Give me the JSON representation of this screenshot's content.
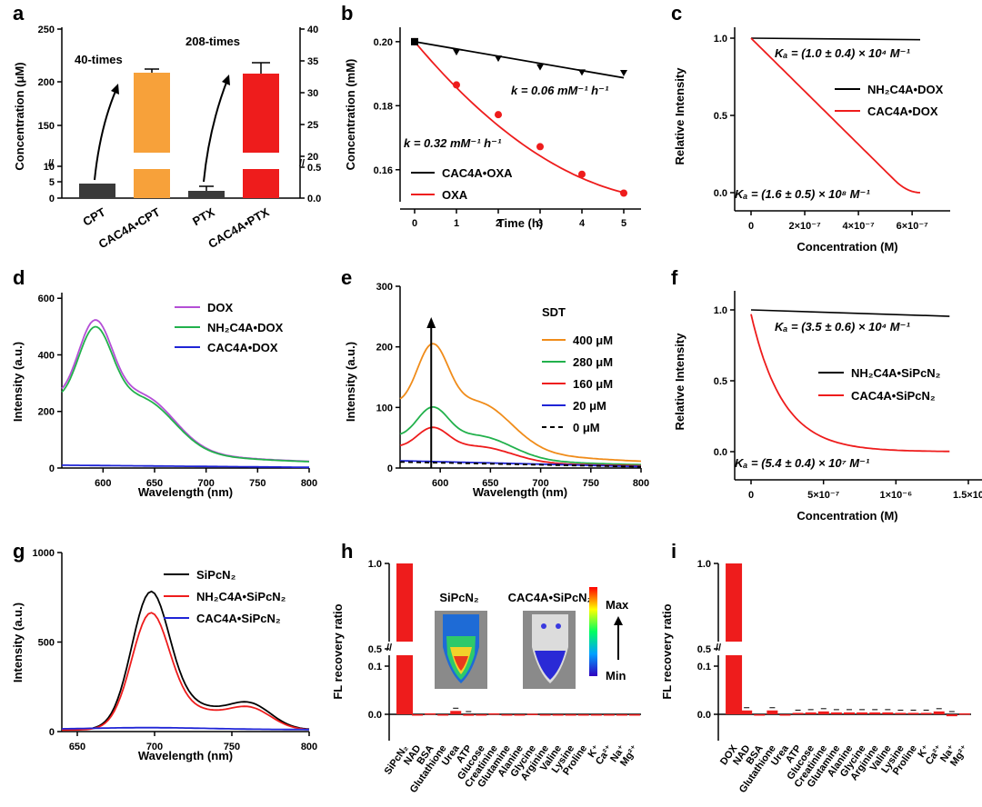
{
  "colors": {
    "black": "#000000",
    "red": "#ee1c1c",
    "orange": "#f7a13a",
    "green": "#22b14c",
    "blue": "#1f24d6",
    "purple": "#b44fd6",
    "orange_line": "#f08c1a",
    "dark": "#3a3a3a"
  },
  "chart_data": [
    {
      "panel": "a",
      "type": "bar",
      "categories": [
        "CPT",
        "CAC4A•CPT",
        "PTX",
        "CAC4A•PTX"
      ],
      "values": [
        5,
        200,
        0.2,
        33
      ],
      "errors": [
        0,
        4,
        0.2,
        1.5
      ],
      "axis": [
        "left",
        "left",
        "right",
        "right"
      ],
      "colors": [
        "#3a3a3a",
        "#f7a13a",
        "#3a3a3a",
        "#ee1c1c"
      ],
      "ylabel": "Concentration (μM)",
      "left_ticks": [
        "0",
        "5",
        "10",
        "150",
        "200",
        "250"
      ],
      "right_ticks": [
        "0.0",
        "0.5",
        "20",
        "25",
        "30",
        "35",
        "40"
      ],
      "annotations": [
        "40-times",
        "208-times"
      ]
    },
    {
      "panel": "b",
      "type": "line",
      "x": [
        0,
        1,
        2,
        3,
        4,
        5
      ],
      "series": [
        {
          "name": "CAC4A•OXA",
          "values": [
            0.2,
            0.1968,
            0.1948,
            0.1921,
            0.1905,
            0.1903
          ],
          "color": "#000000",
          "fit": [
            0.2,
            0.1887
          ]
        },
        {
          "name": "OXA",
          "values": [
            0.2,
            0.1865,
            0.1772,
            0.1672,
            0.1586,
            0.1527
          ],
          "color": "#ee1c1c"
        }
      ],
      "xlabel": "Time (h)",
      "ylabel": "Concentration (mM)",
      "xticks": [
        "0",
        "1",
        "2",
        "3",
        "4",
        "5"
      ],
      "yticks": [
        "0.16",
        "0.18",
        "0.20"
      ],
      "ylim": [
        0.15,
        0.205
      ],
      "annotations": [
        "k = 0.06 mM⁻¹ h⁻¹",
        "k = 0.32 mM⁻¹ h⁻¹"
      ]
    },
    {
      "panel": "c",
      "type": "line",
      "series": [
        {
          "name": "NH₂C4A•DOX",
          "color": "#000000"
        },
        {
          "name": "CAC4A•DOX",
          "color": "#ee1c1c"
        }
      ],
      "xlabel": "Concentration (M)",
      "ylabel": "Relative Intensity",
      "xticks": [
        "0",
        "2×10⁻⁷",
        "4×10⁻⁷",
        "6×10⁻⁷"
      ],
      "yticks": [
        "0.0",
        "0.5",
        "1.0"
      ],
      "annotations": [
        "Kₐ = (1.0 ± 0.4) × 10⁴ M⁻¹",
        "Kₐ = (1.6 ± 0.5) × 10⁸ M⁻¹"
      ]
    },
    {
      "panel": "d",
      "type": "line",
      "series": [
        {
          "name": "DOX",
          "color": "#b44fd6",
          "peak": 550
        },
        {
          "name": "NH₂C4A•DOX",
          "color": "#22b14c",
          "peak": 525
        },
        {
          "name": "CAC4A•DOX",
          "color": "#1f24d6",
          "peak": 10
        }
      ],
      "xlabel": "Wavelength (nm)",
      "ylabel": "Intensity (a.u.)",
      "xticks": [
        "600",
        "650",
        "700",
        "750",
        "800"
      ],
      "yticks": [
        "0",
        "200",
        "400",
        "600"
      ],
      "xlim": [
        560,
        800
      ],
      "ylim": [
        0,
        620
      ]
    },
    {
      "panel": "e",
      "type": "line",
      "legend_title": "SDT",
      "series": [
        {
          "name": "400 μM",
          "color": "#f08c1a",
          "peak": 220
        },
        {
          "name": "280 μM",
          "color": "#22b14c",
          "peak": 108
        },
        {
          "name": "160 μM",
          "color": "#ee1c1c",
          "peak": 72
        },
        {
          "name": "20 μM",
          "color": "#1f24d6",
          "peak": 12
        },
        {
          "name": "0 μM",
          "color": "#000000",
          "peak": 10
        }
      ],
      "xlabel": "Wavelength (nm)",
      "ylabel": "Intensity (a.u.)",
      "xticks": [
        "600",
        "650",
        "700",
        "750",
        "800"
      ],
      "yticks": [
        "0",
        "100",
        "200",
        "300"
      ],
      "xlim": [
        560,
        800
      ],
      "ylim": [
        0,
        300
      ]
    },
    {
      "panel": "f",
      "type": "line",
      "series": [
        {
          "name": "NH₂C4A•SiPcN₂",
          "color": "#000000"
        },
        {
          "name": "CAC4A•SiPcN₂",
          "color": "#ee1c1c"
        }
      ],
      "xlabel": "Concentration (M)",
      "ylabel": "Relative Intensity",
      "xticks": [
        "0",
        "5×10⁻⁷",
        "1×10⁻⁶",
        "1.5×10"
      ],
      "yticks": [
        "0.0",
        "0.5",
        "1.0"
      ],
      "annotations": [
        "Kₐ = (3.5 ± 0.6) × 10⁴ M⁻¹",
        "Kₐ = (5.4 ± 0.4) × 10⁷ M⁻¹"
      ]
    },
    {
      "panel": "g",
      "type": "line",
      "series": [
        {
          "name": "SiPcN₂",
          "color": "#000000",
          "peak": 825
        },
        {
          "name": "NH₂C4A•SiPcN₂",
          "color": "#ee1c1c",
          "peak": 700
        },
        {
          "name": "CAC4A•SiPcN₂",
          "color": "#1f24d6",
          "peak": 18
        }
      ],
      "xlabel": "Wavelength (nm)",
      "ylabel": "Intensity (a.u.)",
      "xticks": [
        "650",
        "700",
        "750",
        "800"
      ],
      "yticks": [
        "0",
        "500",
        "1000"
      ],
      "xlim": [
        640,
        800
      ],
      "ylim": [
        0,
        1000
      ]
    },
    {
      "panel": "h",
      "type": "bar",
      "categories": [
        "SiPcN₂",
        "NAD",
        "BSA",
        "Glutathione",
        "Urea",
        "ATP",
        "Glucose",
        "Creatinine",
        "Glutamine",
        "Alanine",
        "Glycine",
        "Arginine",
        "Valine",
        "Lysine",
        "Proline",
        "K⁺",
        "Ca²⁺",
        "Na⁺",
        "Mg²⁺"
      ],
      "values": [
        1.0,
        0.0,
        0.002,
        0.0,
        0.007,
        -0.003,
        0.0,
        0.002,
        0.0,
        0.0,
        0.001,
        0.0,
        -0.001,
        0.0,
        0.0,
        0.0,
        -0.002,
        0.0,
        -0.001
      ],
      "ylabel": "FL recovery ratio",
      "yticks": [
        "0.0",
        "0.1",
        "0.5",
        "1.0"
      ],
      "inset_labels": [
        "SiPcN₂",
        "CAC4A•SiPcN₂",
        "Max",
        "Min"
      ]
    },
    {
      "panel": "i",
      "type": "bar",
      "categories": [
        "DOX",
        "NAD",
        "BSA",
        "Glutathione",
        "Urea",
        "ATP",
        "Glucose",
        "Creatinine",
        "Glutamine",
        "Alanine",
        "Glycine",
        "Arginine",
        "Valine",
        "Lysine",
        "Proline",
        "K⁺",
        "Ca²⁺",
        "Na⁺",
        "Mg²⁺"
      ],
      "values": [
        1.0,
        0.008,
        0.0,
        0.008,
        0.0,
        0.003,
        0.004,
        0.006,
        0.004,
        0.004,
        0.004,
        0.004,
        0.004,
        0.003,
        0.003,
        0.003,
        0.006,
        -0.004,
        0.002
      ],
      "ylabel": "FL recovery ratio",
      "yticks": [
        "0.0",
        "0.1",
        "0.5",
        "1.0"
      ]
    }
  ]
}
